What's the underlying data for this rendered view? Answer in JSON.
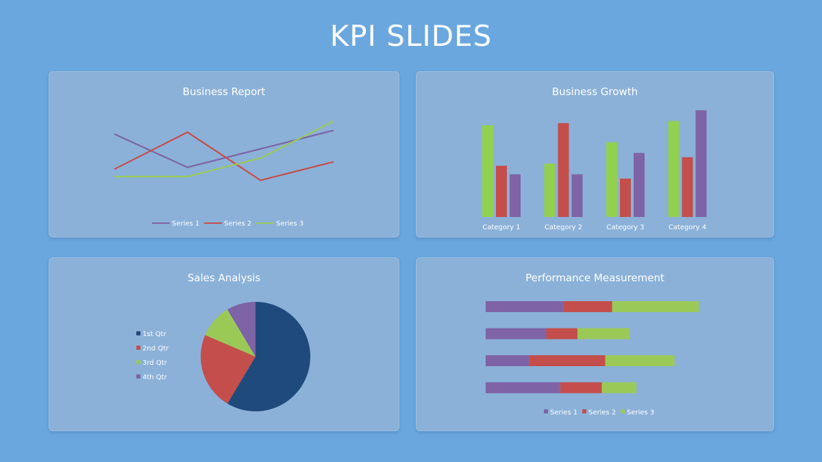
{
  "page": {
    "title": "KPI SLIDES"
  },
  "colors": {
    "purple": "#7e63a6",
    "red": "#c44e4b",
    "green": "#9bc958",
    "greenBright": "#92d050",
    "navy": "#1f4a7c"
  },
  "chart_data": [
    {
      "type": "line",
      "title": "Business Report",
      "categories": [
        "",
        "",
        "",
        ""
      ],
      "ylim": [
        0,
        6
      ],
      "legend": "bottom",
      "series": [
        {
          "name": "Series 1",
          "values": [
            4.3,
            2.5,
            3.5,
            4.5
          ],
          "color": "#7e63a6"
        },
        {
          "name": "Series 2",
          "values": [
            2.4,
            4.4,
            1.8,
            2.8
          ],
          "color": "#c44e4b"
        },
        {
          "name": "Series 3",
          "values": [
            2.0,
            2.0,
            3.0,
            5.0
          ],
          "color": "#9bc958"
        }
      ]
    },
    {
      "type": "bar",
      "title": "Business Growth",
      "categories": [
        "Category 1",
        "Category 2",
        "Category 3",
        "Category 4"
      ],
      "ylim": [
        0,
        6
      ],
      "series": [
        {
          "name": "Series 1",
          "values": [
            4.3,
            2.5,
            3.5,
            4.5
          ],
          "color": "#92d050"
        },
        {
          "name": "Series 2",
          "values": [
            2.4,
            4.4,
            1.8,
            2.8
          ],
          "color": "#c44e4b"
        },
        {
          "name": "Series 3",
          "values": [
            2.0,
            2.0,
            3.0,
            5.0
          ],
          "color": "#7e63a6"
        }
      ]
    },
    {
      "type": "pie",
      "title": "Sales Analysis",
      "legend": "left",
      "slices": [
        {
          "label": "1st Qtr",
          "value": 8.2,
          "color": "#1f4a7c"
        },
        {
          "label": "2nd Qtr",
          "value": 3.2,
          "color": "#c44e4b"
        },
        {
          "label": "3rd Qtr",
          "value": 1.4,
          "color": "#9bc958"
        },
        {
          "label": "4th Qtr",
          "value": 1.2,
          "color": "#7e63a6"
        }
      ]
    },
    {
      "type": "bar",
      "orientation": "horizontal",
      "stacked": true,
      "title": "Performance Measurement",
      "categories": [
        "",
        "",
        "",
        ""
      ],
      "legend": "bottom",
      "series": [
        {
          "name": "Series 1",
          "values": [
            4.5,
            3.5,
            2.5,
            4.3
          ],
          "color": "#7e63a6"
        },
        {
          "name": "Series 2",
          "values": [
            2.8,
            1.8,
            4.4,
            2.4
          ],
          "color": "#c44e4b"
        },
        {
          "name": "Series 3",
          "values": [
            5.0,
            3.0,
            4.0,
            2.0
          ],
          "color": "#9bc958"
        }
      ]
    }
  ]
}
